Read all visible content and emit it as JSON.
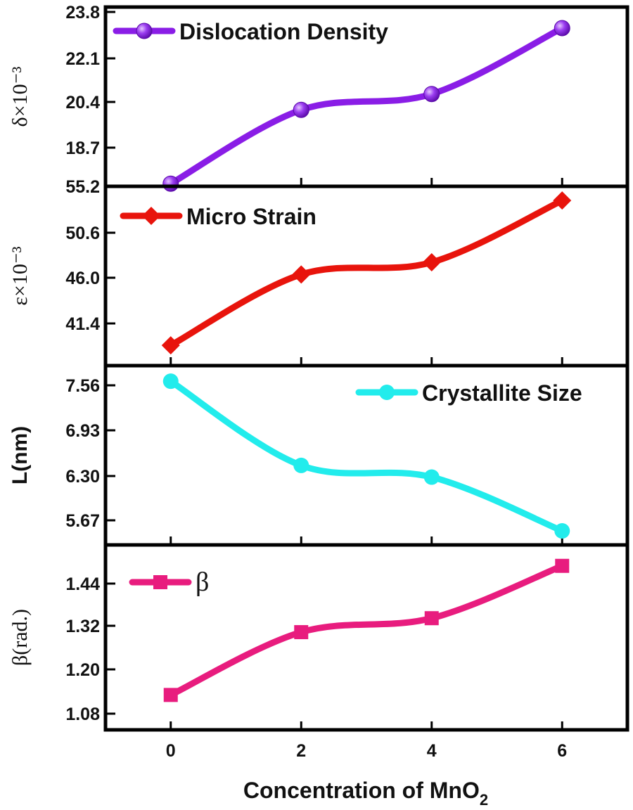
{
  "chart_data": [
    {
      "type": "line",
      "ylabel": "δ×10⁻³",
      "yticks": [
        "23.8",
        "22.1",
        "20.4",
        "18.7"
      ],
      "ylim": [
        17.0,
        23.8
      ],
      "x": [
        0,
        2,
        4,
        6
      ],
      "series": [
        {
          "name": "Dislocation Density",
          "values": [
            17.1,
            19.9,
            20.5,
            23.0
          ],
          "color": "#8a1de6",
          "marker": "sphere"
        }
      ],
      "legend_position": "top-left"
    },
    {
      "type": "line",
      "ylabel": "ε×10⁻³",
      "yticks": [
        "55.2",
        "50.6",
        "46.0",
        "41.4"
      ],
      "ylim": [
        37.5,
        55.2
      ],
      "x": [
        0,
        2,
        4,
        6
      ],
      "series": [
        {
          "name": "Micro Strain",
          "values": [
            39.5,
            46.5,
            47.7,
            53.8
          ],
          "color": "#e8140c",
          "marker": "diamond"
        }
      ],
      "legend_position": "top-left"
    },
    {
      "type": "line",
      "ylabel": "L(nm)",
      "yticks": [
        "7.56",
        "6.93",
        "6.30",
        "5.67"
      ],
      "ylim": [
        5.4,
        7.7
      ],
      "x": [
        0,
        2,
        4,
        6
      ],
      "series": [
        {
          "name": "Crystallite Size",
          "values": [
            7.5,
            6.42,
            6.27,
            5.58
          ],
          "color": "#22ecec",
          "marker": "circle"
        }
      ],
      "legend_position": "top-right"
    },
    {
      "type": "line",
      "ylabel": "β(rad.)",
      "yticks": [
        "1.44",
        "1.32",
        "1.20",
        "1.08"
      ],
      "ylim": [
        1.02,
        1.55
      ],
      "x": [
        0,
        2,
        4,
        6
      ],
      "series": [
        {
          "name": "β",
          "values": [
            1.12,
            1.3,
            1.34,
            1.49
          ],
          "color": "#e81c7e",
          "marker": "square"
        }
      ],
      "legend_position": "top-left"
    }
  ],
  "shared_x": {
    "ticks": [
      "0",
      "2",
      "4",
      "6"
    ],
    "xlim": [
      -1,
      7
    ],
    "xlabel_main": "Concentration of MnO",
    "xlabel_sub": "2"
  }
}
